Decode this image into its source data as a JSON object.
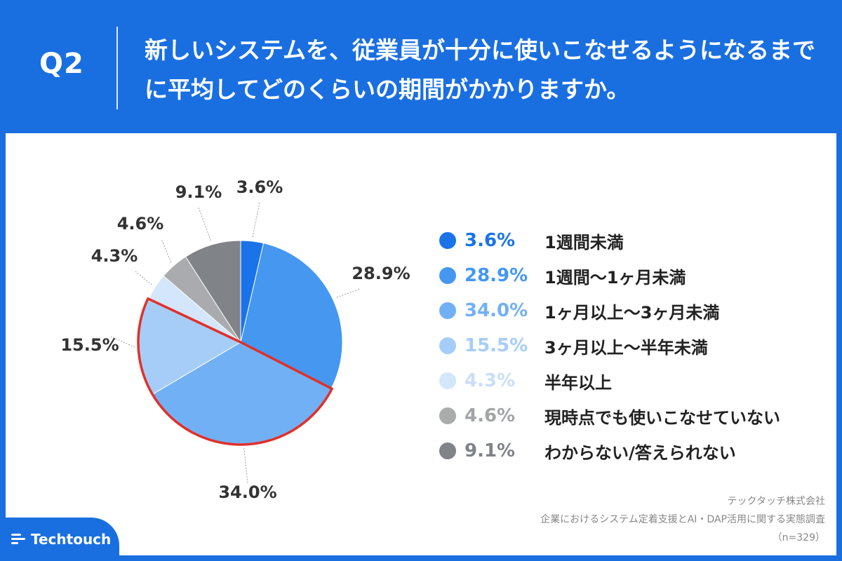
{
  "header": {
    "q_label": "Q2",
    "question": "新しいシステムを、従業員が十分に使いこなせるようになるまでに平均してどのくらいの期間がかかりますか。"
  },
  "chart_data": {
    "type": "pie",
    "title": "新しいシステムを、従業員が十分に使いこなせるようになるまでに平均してどのくらいの期間がかかりますか。",
    "start": "12 o'clock, clockwise",
    "highlighted": [
      "15.5%",
      "34.0%"
    ],
    "slices": [
      {
        "label": "1週間未満",
        "value": 3.6,
        "text": "3.6%",
        "color": "#1a73e8"
      },
      {
        "label": "1週間〜1ヶ月未満",
        "value": 28.9,
        "text": "28.9%",
        "color": "#4597f0"
      },
      {
        "label": "1ヶ月以上〜3ヶ月未満",
        "value": 34.0,
        "text": "34.0%",
        "color": "#72b0f5"
      },
      {
        "label": "3ヶ月以上〜半年未満",
        "value": 15.5,
        "text": "15.5%",
        "color": "#a6cdf8"
      },
      {
        "label": "半年以上",
        "value": 4.3,
        "text": "4.3%",
        "color": "#d3e6fb"
      },
      {
        "label": "現時点でも使いこなせていない",
        "value": 4.6,
        "text": "4.6%",
        "color": "#a9abae"
      },
      {
        "label": "わからない/答えられない",
        "value": 9.1,
        "text": "9.1%",
        "color": "#808388"
      }
    ],
    "highlight_color": "#e0302a"
  },
  "legend_pct_colors": [
    "#1a73e8",
    "#4597f0",
    "#72b0f5",
    "#a6cdf8",
    "#c9def7",
    "#a2a4a8",
    "#808388"
  ],
  "source": {
    "company": "テックタッチ株式会社",
    "survey": "企業におけるシステム定着支援とAI・DAP活用に関する実態調査",
    "sample": "（n=329）"
  },
  "logo": {
    "text": "Techtouch"
  }
}
